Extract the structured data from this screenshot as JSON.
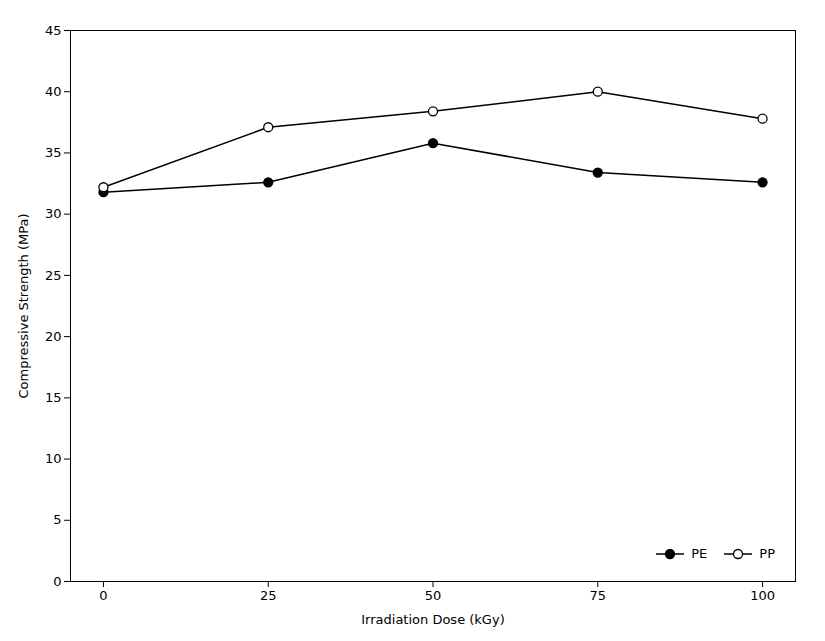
{
  "chart_data": {
    "type": "line",
    "xlabel": "Irradiation Dose (kGy)",
    "ylabel": "Compressive Strength (MPa)",
    "x": [
      0,
      25,
      50,
      75,
      100
    ],
    "series": [
      {
        "name": "PE",
        "color": "#000000",
        "marker": "circle",
        "values": [
          31.8,
          32.6,
          35.8,
          33.4,
          32.6
        ]
      },
      {
        "name": "PP",
        "color": "#000000",
        "marker": "open_circle",
        "values": [
          32.2,
          37.1,
          38.4,
          40.0,
          37.8
        ]
      }
    ],
    "xlim": [
      -5,
      105
    ],
    "xticks": [
      0,
      25,
      50,
      75,
      100
    ],
    "ylim": [
      0,
      45
    ],
    "yticks": [
      0,
      5,
      10,
      15,
      20,
      25,
      30,
      35,
      40,
      45
    ],
    "grid": false,
    "legend": "lower right"
  }
}
